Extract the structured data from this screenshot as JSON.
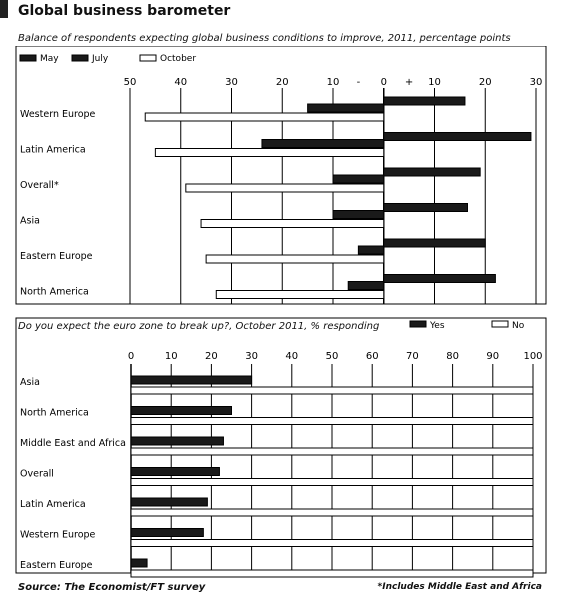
{
  "title": "Global business barometer",
  "footer": {
    "source": "Source: The Economist/FT survey",
    "footnote": "*Includes Middle East and Africa"
  },
  "colors": {
    "dark": "#1a1a1a",
    "light": "#ffffff",
    "border": "#000000",
    "grid": "#000000"
  },
  "chart_data": [
    {
      "type": "bar",
      "orientation": "horizontal",
      "title": "Balance of respondents expecting global business conditions to improve, 2011, percentage points",
      "categories": [
        "Western Europe",
        "Latin America",
        "Overall*",
        "Asia",
        "Eastern Europe",
        "North America"
      ],
      "series": [
        {
          "name": "May",
          "values": [
            16,
            29,
            19,
            16.5,
            20,
            22
          ]
        },
        {
          "name": "July",
          "values": [
            -15,
            -24,
            -10,
            -10,
            -5,
            -7
          ]
        },
        {
          "name": "October",
          "values": [
            -47,
            -45,
            -39,
            -36,
            -35,
            -33
          ]
        }
      ],
      "xlim": [
        -50,
        30
      ],
      "xticks": [
        -50,
        -40,
        -30,
        -20,
        -10,
        0,
        10,
        20,
        30
      ],
      "xtick_labels": [
        "50",
        "40",
        "30",
        "20",
        "10",
        "0",
        "10",
        "20",
        "30"
      ],
      "sign_minus": "-",
      "sign_plus": "+",
      "legend": "top-left",
      "grid": true
    },
    {
      "type": "bar",
      "orientation": "horizontal",
      "title": "Do you expect the euro zone to break up?, October 2011, % responding",
      "categories": [
        "Asia",
        "North America",
        "Middle East and Africa",
        "Overall",
        "Latin America",
        "Western Europe",
        "Eastern Europe"
      ],
      "series": [
        {
          "name": "Yes",
          "values": [
            30,
            25,
            23,
            22,
            19,
            18,
            4
          ]
        },
        {
          "name": "No",
          "values": [
            70,
            75,
            77,
            78,
            81,
            82,
            96
          ]
        }
      ],
      "xlim": [
        0,
        100
      ],
      "xticks": [
        0,
        10,
        20,
        30,
        40,
        50,
        60,
        70,
        80,
        90,
        100
      ],
      "legend": "top-right",
      "grid": true
    }
  ]
}
